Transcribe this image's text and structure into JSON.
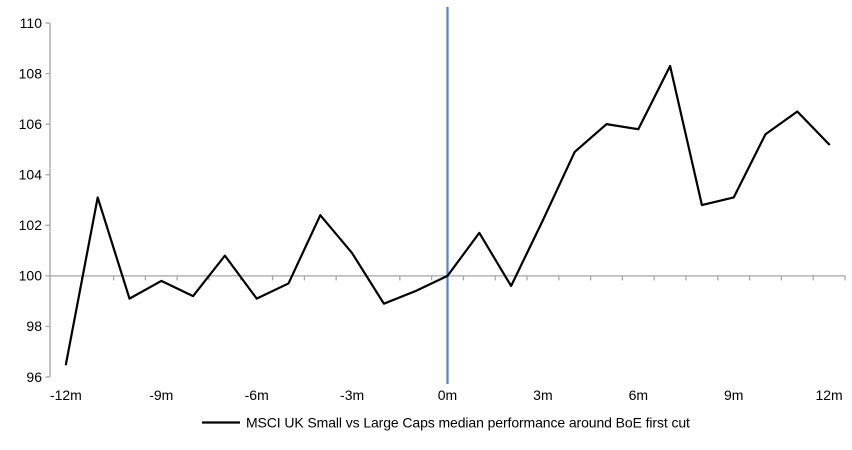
{
  "chart_data": {
    "type": "line",
    "title": "",
    "xlabel": "",
    "ylabel": "",
    "x_months": [
      -12,
      -11,
      -10,
      -9,
      -8,
      -7,
      -6,
      -5,
      -4,
      -3,
      -2,
      -1,
      0,
      1,
      2,
      3,
      4,
      5,
      6,
      7,
      8,
      9,
      10,
      11,
      12
    ],
    "series": [
      {
        "name": "MSCI UK Small vs Large Caps median performance around BoE first cut",
        "color": "#000000",
        "values": [
          96.5,
          103.1,
          99.1,
          99.8,
          99.2,
          100.8,
          99.1,
          99.7,
          102.4,
          100.9,
          98.9,
          99.4,
          100.0,
          101.7,
          99.6,
          102.2,
          104.9,
          106.0,
          105.8,
          108.3,
          102.8,
          103.1,
          105.6,
          106.5,
          105.2
        ]
      }
    ],
    "x_tick_months": [
      -12,
      -9,
      -6,
      -3,
      0,
      3,
      6,
      9,
      12
    ],
    "x_tick_labels": [
      "-12m",
      "-9m",
      "-6m",
      "-3m",
      "0m",
      "3m",
      "6m",
      "9m",
      "12m"
    ],
    "y_ticks": [
      96,
      98,
      100,
      102,
      104,
      106,
      108,
      110
    ],
    "ylim": [
      96,
      110
    ],
    "baseline_value": 100,
    "event_line_month": 0,
    "grid": false,
    "legend_position": "bottom"
  },
  "colors": {
    "series_line": "#000000",
    "axis_gray": "#a6a6a6",
    "event_line_blue": "#4e86c8",
    "background": "#ffffff",
    "text": "#000000"
  }
}
